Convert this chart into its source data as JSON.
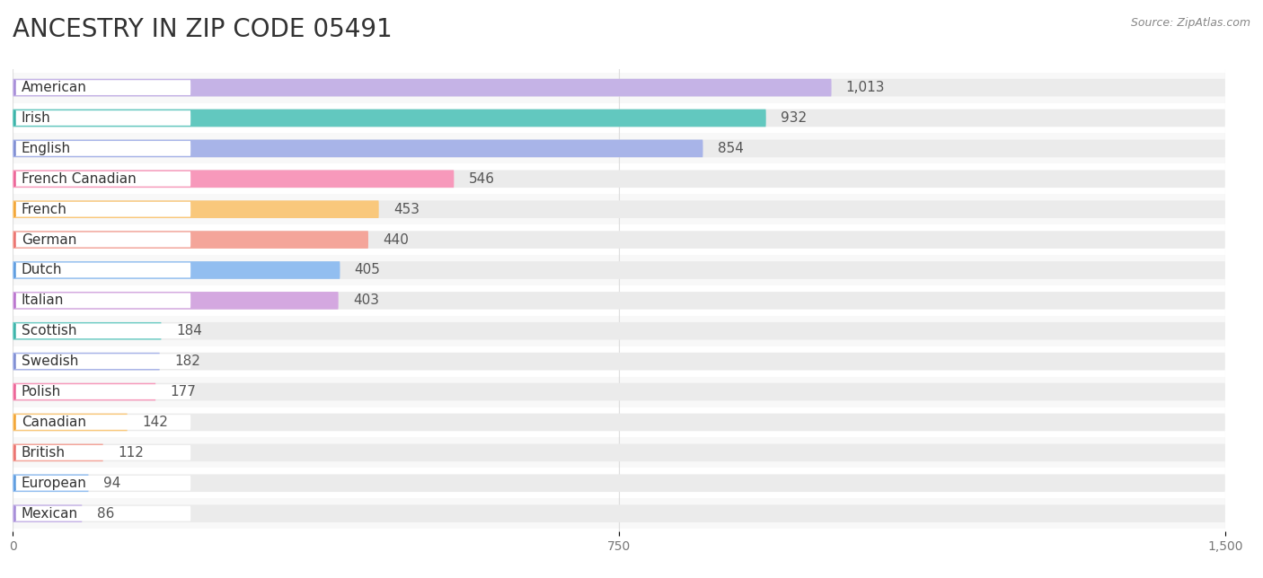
{
  "title": "ANCESTRY IN ZIP CODE 05491",
  "source": "Source: ZipAtlas.com",
  "categories": [
    "American",
    "Irish",
    "English",
    "French Canadian",
    "French",
    "German",
    "Dutch",
    "Italian",
    "Scottish",
    "Swedish",
    "Polish",
    "Canadian",
    "British",
    "European",
    "Mexican"
  ],
  "values": [
    1013,
    932,
    854,
    546,
    453,
    440,
    405,
    403,
    184,
    182,
    177,
    142,
    112,
    94,
    86
  ],
  "bar_colors": [
    "#c5b3e6",
    "#62c8bf",
    "#a8b4e8",
    "#f799bb",
    "#f9c87c",
    "#f4a59a",
    "#92bef0",
    "#d4a8e0",
    "#6dccc4",
    "#a8b4e8",
    "#f799bb",
    "#f9c87c",
    "#f4a59a",
    "#92bef0",
    "#c5b3e6"
  ],
  "circle_colors": [
    "#9b7fd4",
    "#2aaba0",
    "#7080cc",
    "#e8508a",
    "#f0981a",
    "#e86060",
    "#4a90d9",
    "#b060c8",
    "#2aaba0",
    "#7080cc",
    "#e8508a",
    "#f0981a",
    "#e86060",
    "#4a90d9",
    "#9b7fd4"
  ],
  "xlim": [
    0,
    1500
  ],
  "xticks": [
    0,
    750,
    1500
  ],
  "background_color": "#ffffff",
  "bar_bg_color": "#ebebeb",
  "row_bg_color": "#f5f5f5",
  "title_fontsize": 20,
  "label_fontsize": 11,
  "value_fontsize": 11
}
